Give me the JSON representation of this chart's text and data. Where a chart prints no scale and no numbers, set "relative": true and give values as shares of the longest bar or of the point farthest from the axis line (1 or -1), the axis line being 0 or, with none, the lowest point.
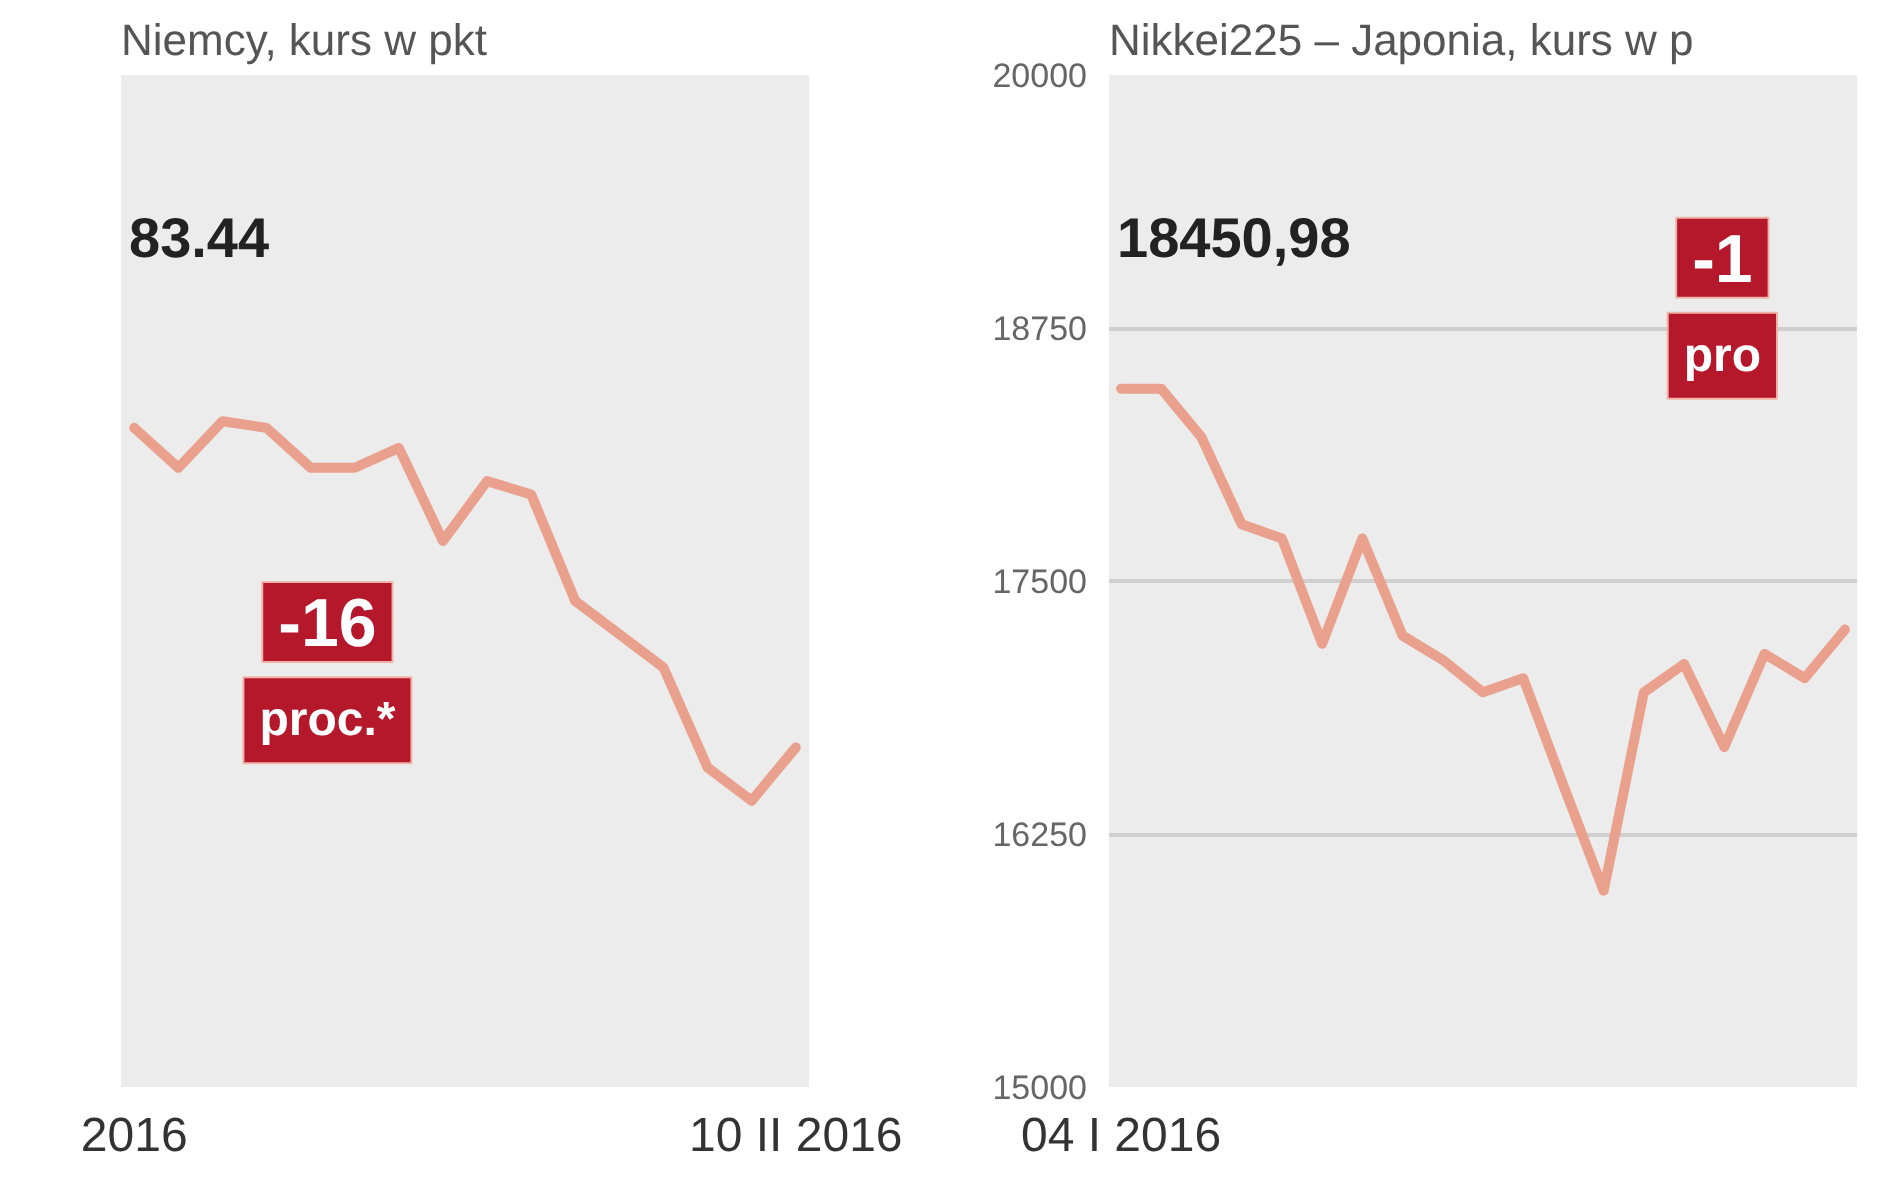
{
  "chart_data": [
    {
      "type": "line",
      "title": "Niemcy, kurs w pkt",
      "relative": true,
      "categories": [
        "2016",
        null,
        null,
        null,
        null,
        null,
        null,
        null,
        null,
        null,
        null,
        null,
        null,
        null,
        null,
        "10 II 2016"
      ],
      "series": [
        {
          "color": "#e9a08c",
          "values": [
            0.99,
            0.93,
            1.0,
            0.99,
            0.93,
            0.93,
            0.96,
            0.82,
            0.91,
            0.89,
            0.73,
            0.68,
            0.63,
            0.48,
            0.43,
            0.51
          ]
        }
      ],
      "annotations": [
        "83.44",
        "-16",
        "proc.*"
      ]
    },
    {
      "type": "line",
      "title": "Nikkei225 – Japonia, kurs w p",
      "categories": [
        "04 I 2016",
        null,
        null,
        null,
        null,
        null,
        null,
        null,
        null,
        null,
        null,
        null,
        null,
        null,
        null,
        null,
        null,
        null,
        null
      ],
      "series": [
        {
          "color": "#e9a08c",
          "values": [
            18450,
            18450,
            18210,
            17780,
            17710,
            17190,
            17710,
            17230,
            17110,
            16950,
            17020,
            16490,
            15970,
            16950,
            17090,
            16680,
            17140,
            17020,
            17260
          ]
        }
      ],
      "ylim": [
        15000,
        20000
      ],
      "yticks": [
        15000,
        16250,
        17500,
        18750,
        20000
      ],
      "grid": "y",
      "annotations": [
        "18450,98",
        "-1",
        "pro"
      ]
    }
  ]
}
